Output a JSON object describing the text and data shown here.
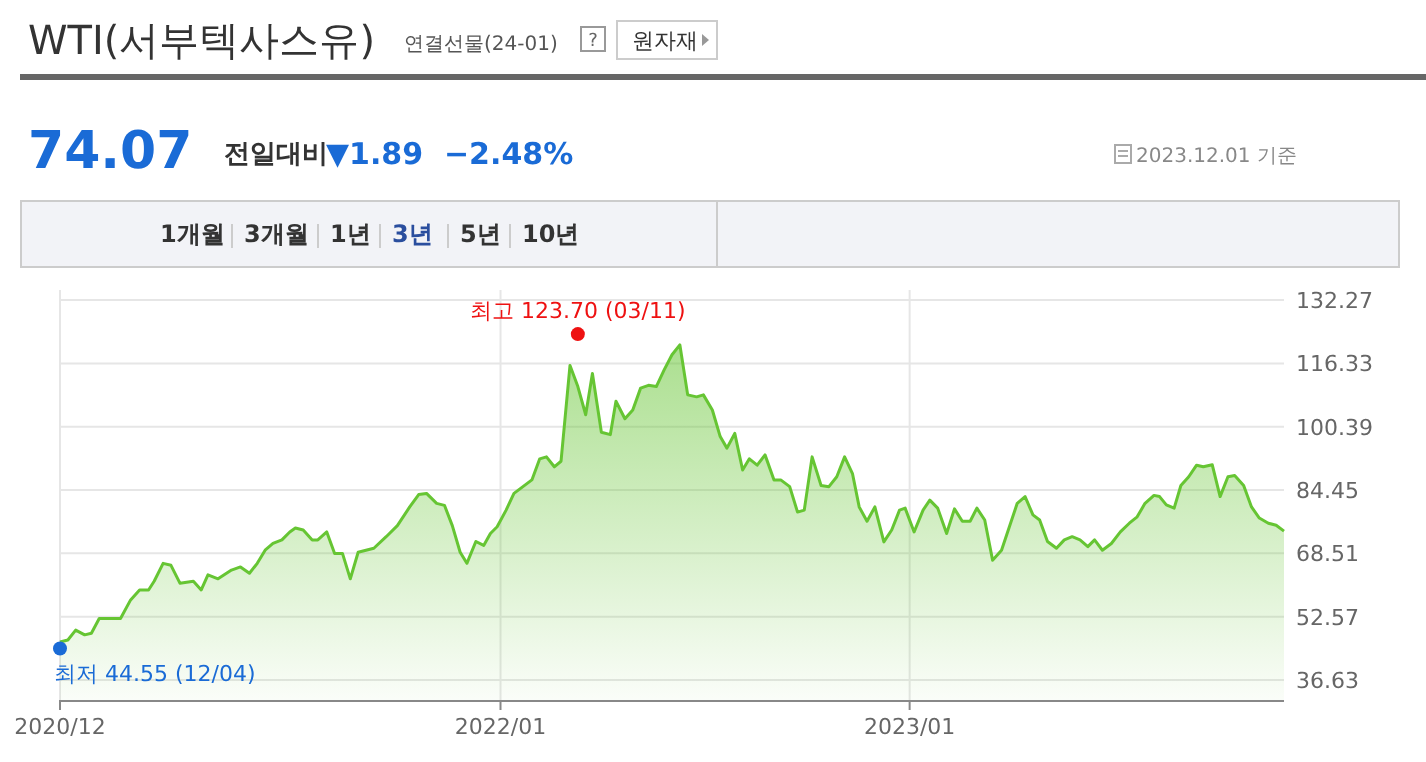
{
  "chart_data": {
    "type": "area",
    "title": "WTI(서부텍사스유)",
    "subtitle": "연결선물(24-01)",
    "annotations": [
      "?",
      "원자재",
      "74.07",
      "전일대비",
      "▼1.89  −2.48%",
      "2023.12.01 기준",
      "1개월",
      "3개월",
      "1년",
      "3년",
      "5년",
      "10년"
    ],
    "x": [
      "2020-12-04",
      "2020-12-11",
      "2020-12-18",
      "2020-12-26",
      "2021-01-01",
      "2021-01-08",
      "2021-01-27",
      "2021-02-05",
      "2021-02-13",
      "2021-02-21",
      "2021-02-26",
      "2021-03-06",
      "2021-03-13",
      "2021-03-21",
      "2021-04-02",
      "2021-04-09",
      "2021-04-15",
      "2021-04-24",
      "2021-05-06",
      "2021-05-14",
      "2021-05-22",
      "2021-05-29",
      "2021-06-05",
      "2021-06-12",
      "2021-06-20",
      "2021-06-27",
      "2021-07-02",
      "2021-07-09",
      "2021-07-17",
      "2021-07-22",
      "2021-07-30",
      "2021-08-06",
      "2021-08-13",
      "2021-08-20",
      "2021-08-27",
      "2021-09-10",
      "2021-09-21",
      "2021-10-01",
      "2021-10-12",
      "2021-10-20",
      "2021-10-27",
      "2021-11-05",
      "2021-11-12",
      "2021-11-19",
      "2021-11-26",
      "2021-12-02",
      "2021-12-10",
      "2021-12-17",
      "2021-12-23",
      "2021-12-29",
      "2022-01-06",
      "2022-01-13",
      "2022-01-21",
      "2022-01-29",
      "2022-02-05",
      "2022-02-11",
      "2022-02-18",
      "2022-02-24",
      "2022-03-04",
      "2022-03-11",
      "2022-03-18",
      "2022-03-24",
      "2022-04-01",
      "2022-04-09",
      "2022-04-14",
      "2022-04-22",
      "2022-04-29",
      "2022-05-06",
      "2022-05-13",
      "2022-05-20",
      "2022-05-27",
      "2022-06-03",
      "2022-06-10",
      "2022-06-17",
      "2022-06-25",
      "2022-07-01",
      "2022-07-09",
      "2022-07-16",
      "2022-07-22",
      "2022-07-29",
      "2022-08-05",
      "2022-08-11",
      "2022-08-18",
      "2022-08-25",
      "2022-09-02",
      "2022-09-08",
      "2022-09-16",
      "2022-09-23",
      "2022-09-29",
      "2022-10-06",
      "2022-10-14",
      "2022-10-21",
      "2022-10-28",
      "2022-11-04",
      "2022-11-11",
      "2022-11-17",
      "2022-11-24",
      "2022-12-01",
      "2022-12-09",
      "2022-12-16",
      "2022-12-23",
      "2022-12-28",
      "2023-01-05",
      "2023-01-13",
      "2023-01-19",
      "2023-01-26",
      "2023-02-03",
      "2023-02-10",
      "2023-02-17",
      "2023-02-24",
      "2023-03-02",
      "2023-03-09",
      "2023-03-16",
      "2023-03-24",
      "2023-03-31",
      "2023-04-07",
      "2023-04-14",
      "2023-04-21",
      "2023-04-27",
      "2023-05-04",
      "2023-05-12",
      "2023-05-19",
      "2023-05-26",
      "2023-06-02",
      "2023-06-09",
      "2023-06-15",
      "2023-06-22",
      "2023-06-30",
      "2023-07-08",
      "2023-07-16",
      "2023-07-23",
      "2023-07-30",
      "2023-08-07",
      "2023-08-12",
      "2023-08-18",
      "2023-08-25",
      "2023-08-31",
      "2023-09-07",
      "2023-09-14",
      "2023-09-20",
      "2023-09-28",
      "2023-10-05",
      "2023-10-12",
      "2023-10-18",
      "2023-10-26",
      "2023-11-02",
      "2023-11-09",
      "2023-11-17",
      "2023-11-24",
      "2023-12-01"
    ],
    "series": [
      {
        "color": "#66c533",
        "values": [
          46.2,
          46.7,
          49.2,
          48.0,
          48.4,
          52.1,
          52.1,
          56.8,
          59.3,
          59.3,
          61.5,
          66.0,
          65.5,
          61.0,
          61.5,
          59.3,
          63.1,
          62.1,
          64.3,
          65.1,
          63.5,
          66.0,
          69.3,
          71.0,
          71.9,
          73.9,
          74.9,
          74.4,
          71.9,
          71.9,
          73.9,
          68.5,
          68.5,
          62.1,
          68.8,
          69.8,
          72.7,
          75.5,
          80.2,
          83.3,
          83.6,
          81.1,
          80.6,
          75.5,
          68.8,
          66.0,
          71.5,
          70.5,
          73.5,
          75.2,
          79.4,
          83.6,
          85.3,
          87.0,
          92.3,
          92.8,
          90.3,
          91.7,
          115.8,
          110.5,
          103.4,
          113.8,
          99.0,
          98.4,
          106.8,
          102.4,
          104.6,
          110.1,
          110.8,
          110.5,
          114.7,
          118.5,
          121.0,
          108.4,
          107.9,
          108.4,
          104.6,
          97.9,
          95.0,
          98.7,
          89.5,
          92.3,
          90.7,
          93.3,
          87.0,
          87.0,
          85.3,
          78.9,
          79.4,
          92.8,
          85.6,
          85.3,
          87.8,
          92.8,
          88.6,
          80.2,
          76.6,
          80.2,
          71.4,
          74.4,
          79.4,
          79.9,
          73.9,
          79.4,
          81.9,
          79.9,
          73.5,
          79.7,
          76.6,
          76.6,
          79.9,
          76.9,
          66.8,
          69.3,
          75.2,
          81.1,
          82.8,
          78.2,
          76.9,
          71.5,
          69.8,
          71.9,
          72.7,
          71.9,
          70.2,
          71.9,
          69.3,
          71.0,
          73.9,
          76.1,
          77.7,
          81.1,
          83.1,
          82.8,
          80.7,
          79.9,
          85.6,
          87.8,
          90.7,
          90.3,
          90.8,
          82.8,
          87.8,
          88.1,
          85.6,
          80.2,
          77.4,
          76.1,
          75.6,
          74.1
        ]
      },
      {
        "type": "scatter",
        "color": "#ee1111",
        "x": [
          "2022-03-11"
        ],
        "values": [
          123.7
        ],
        "value_labels": [
          "최고 123.70 (03/11)"
        ]
      },
      {
        "type": "scatter",
        "color": "#1a6bd6",
        "x": [
          "2020-12-04"
        ],
        "values": [
          44.55
        ],
        "value_labels": [
          "최저 44.55 (12/04)"
        ]
      }
    ],
    "xlim": [
      "2020-12-04",
      "2023-12-01"
    ],
    "xticks": [
      {
        "value": "2020-12-04",
        "label": "2020/12"
      },
      {
        "value": "2022-01",
        "label": "2022/01"
      },
      {
        "value": "2023-01",
        "label": "2023/01"
      }
    ],
    "ylim": [
      31.6,
      134.8
    ],
    "yticks": [
      36.63,
      52.57,
      68.51,
      84.45,
      100.39,
      116.33,
      132.27
    ],
    "grid": true
  }
}
